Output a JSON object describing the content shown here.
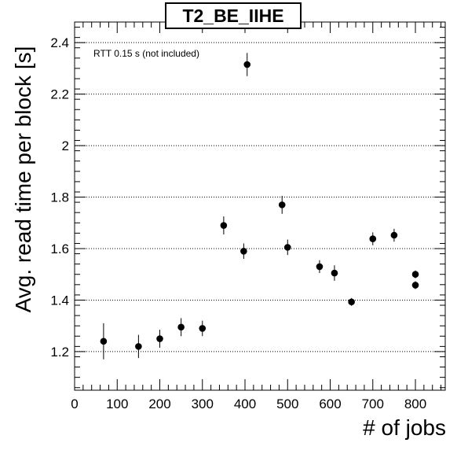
{
  "chart_data": {
    "type": "scatter",
    "title": "T2_BE_IIHE",
    "annotation": "RTT 0.15 s (not included)",
    "xlabel": "# of jobs",
    "ylabel": "Avg. read time per block [s]",
    "xlim": [
      0,
      870
    ],
    "ylim": [
      1.05,
      2.48
    ],
    "xticks": [
      0,
      100,
      200,
      300,
      400,
      500,
      600,
      700,
      800
    ],
    "yticks": [
      1.2,
      1.4,
      1.6,
      1.8,
      2.0,
      2.2,
      2.4
    ],
    "ytick_labels": [
      "1.2",
      "1.4",
      "1.6",
      "1.8",
      "2",
      "2.2",
      "2.4"
    ],
    "grid": "horizontal dotted",
    "marker_color": "#000000",
    "points": [
      {
        "x": 68,
        "y": 1.24,
        "err": 0.07
      },
      {
        "x": 150,
        "y": 1.22,
        "err": 0.045
      },
      {
        "x": 200,
        "y": 1.25,
        "err": 0.035
      },
      {
        "x": 250,
        "y": 1.295,
        "err": 0.035
      },
      {
        "x": 300,
        "y": 1.29,
        "err": 0.03
      },
      {
        "x": 350,
        "y": 1.69,
        "err": 0.035
      },
      {
        "x": 397,
        "y": 1.59,
        "err": 0.03
      },
      {
        "x": 405,
        "y": 2.315,
        "err": 0.045
      },
      {
        "x": 487,
        "y": 1.77,
        "err": 0.035
      },
      {
        "x": 500,
        "y": 1.605,
        "err": 0.03
      },
      {
        "x": 575,
        "y": 1.53,
        "err": 0.025
      },
      {
        "x": 610,
        "y": 1.505,
        "err": 0.03
      },
      {
        "x": 650,
        "y": 1.393,
        "err": 0.015
      },
      {
        "x": 700,
        "y": 1.638,
        "err": 0.025
      },
      {
        "x": 750,
        "y": 1.652,
        "err": 0.025
      },
      {
        "x": 800,
        "y": 1.5,
        "err": 0.015
      },
      {
        "x": 800,
        "y": 1.458,
        "err": 0.015
      }
    ]
  }
}
